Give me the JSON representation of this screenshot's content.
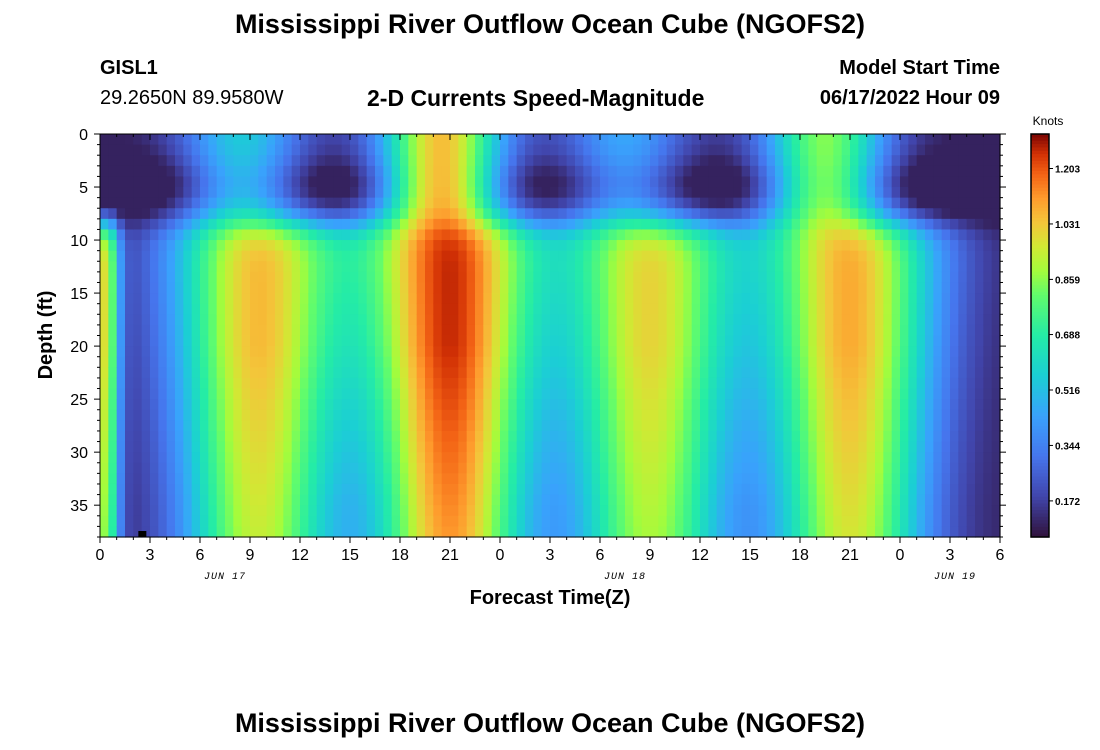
{
  "header": {
    "title": "Mississippi River Outflow Ocean Cube (NGOFS2)",
    "station": "GISL1",
    "coords": "29.2650N  89.9580W",
    "subtitle": "2-D Currents Speed-Magnitude",
    "model_label": "Model Start Time",
    "model_time": "06/17/2022 Hour 09"
  },
  "footer": {
    "title": "Mississippi River Outflow Ocean Cube (NGOFS2)"
  },
  "chart_data": {
    "type": "heatmap",
    "title": "2-D Currents Speed-Magnitude",
    "xlabel": "Forecast Time(Z)",
    "ylabel": "Depth (ft)",
    "x_tick_labels": [
      "0",
      "3",
      "6",
      "9",
      "12",
      "15",
      "18",
      "21",
      "0",
      "3",
      "6",
      "9",
      "12",
      "15",
      "18",
      "21",
      "0",
      "3",
      "6"
    ],
    "x_hours_range": [
      0,
      54
    ],
    "date_labels": [
      {
        "text": "JUN 17",
        "hour": 7.5
      },
      {
        "text": "JUN 18",
        "hour": 31.5
      },
      {
        "text": "JUN 19",
        "hour": 51.3
      }
    ],
    "y_ticks": [
      0,
      5,
      10,
      15,
      20,
      25,
      30,
      35
    ],
    "ylim": [
      0,
      38
    ],
    "colorbar": {
      "label": "Knots",
      "ticks": [
        "1.203",
        "1.031",
        "0.859",
        "0.688",
        "0.516",
        "0.344",
        "0.172"
      ],
      "tick_values": [
        1.203,
        1.031,
        0.859,
        0.688,
        0.516,
        0.344,
        0.172
      ],
      "range": [
        0.06,
        1.31
      ]
    },
    "field": {
      "surface_peaks": [
        {
          "hour": 8.5,
          "value": 0.55
        },
        {
          "hour": 20.5,
          "value": 1.05
        },
        {
          "hour": 31.5,
          "value": 0.45
        },
        {
          "hour": 43.5,
          "value": 0.85
        }
      ],
      "deep_peaks": [
        {
          "hour": 9.5,
          "value": 1.05
        },
        {
          "hour": 21.0,
          "value": 1.25
        },
        {
          "hour": 33.0,
          "value": 1.0
        },
        {
          "hour": 45.0,
          "value": 1.08
        }
      ],
      "edge_band": {
        "hour": 0.3,
        "value": 0.95
      },
      "minimum": 0.1
    }
  }
}
